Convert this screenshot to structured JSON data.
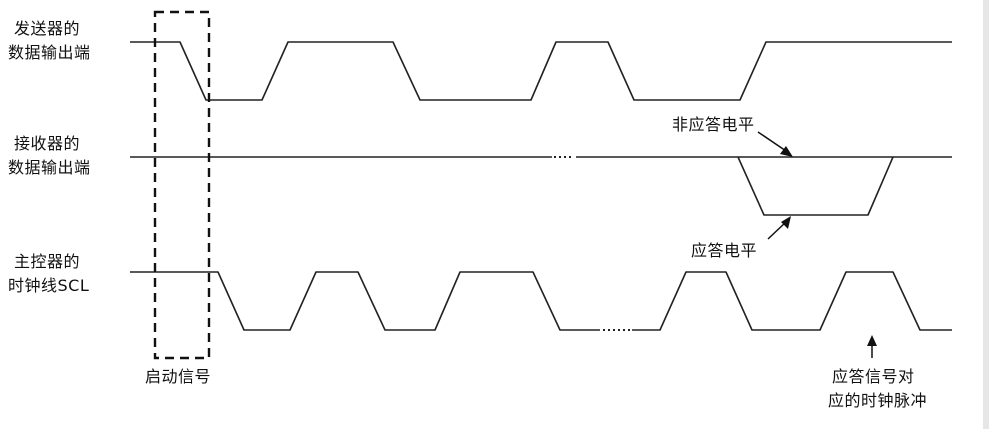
{
  "signals": [
    {
      "id": "tx",
      "label_line1": "发送器的",
      "label_line2": "数据输出端"
    },
    {
      "id": "rx",
      "label_line1": "接收器的",
      "label_line2": "数据输出端"
    },
    {
      "id": "scl",
      "label_line1": "主控器的",
      "label_line2": "时钟线SCL"
    }
  ],
  "annotations": {
    "nack_level": "非应答电平",
    "ack_level": "应答电平",
    "start_signal": "启动信号",
    "ack_clock_line1": "应答信号对",
    "ack_clock_line2": "应的时钟脉冲"
  },
  "colors": {
    "line": "#222222",
    "frame": "#e6e6e6"
  }
}
